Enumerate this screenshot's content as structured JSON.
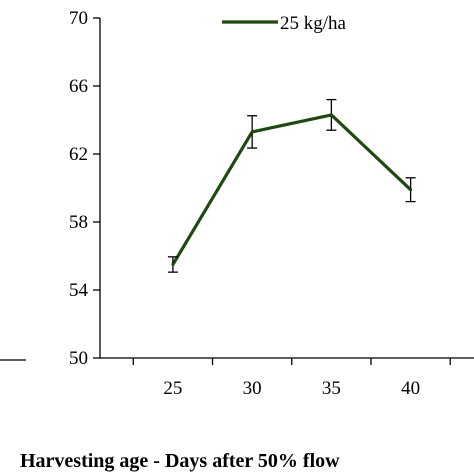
{
  "chart_data": {
    "type": "line",
    "title": "",
    "xlabel": "Harvesting age - Days after 50% flow",
    "ylabel": "",
    "categories": [
      "25",
      "30",
      "35",
      "40"
    ],
    "x": [
      25,
      30,
      35,
      40
    ],
    "xlim": [
      20.4,
      44
    ],
    "ylim": [
      50,
      70
    ],
    "yticks": [
      50,
      54,
      58,
      62,
      66,
      70
    ],
    "yticklabels": [
      "50",
      "54",
      "58",
      "62",
      "66",
      "70"
    ],
    "grid": false,
    "legend_position": "top-right",
    "series": [
      {
        "name": "25 kg/ha",
        "color": "#1e4a12",
        "values": [
          55.5,
          63.3,
          64.3,
          59.9
        ],
        "error": [
          0.45,
          0.95,
          0.9,
          0.7
        ]
      }
    ]
  }
}
